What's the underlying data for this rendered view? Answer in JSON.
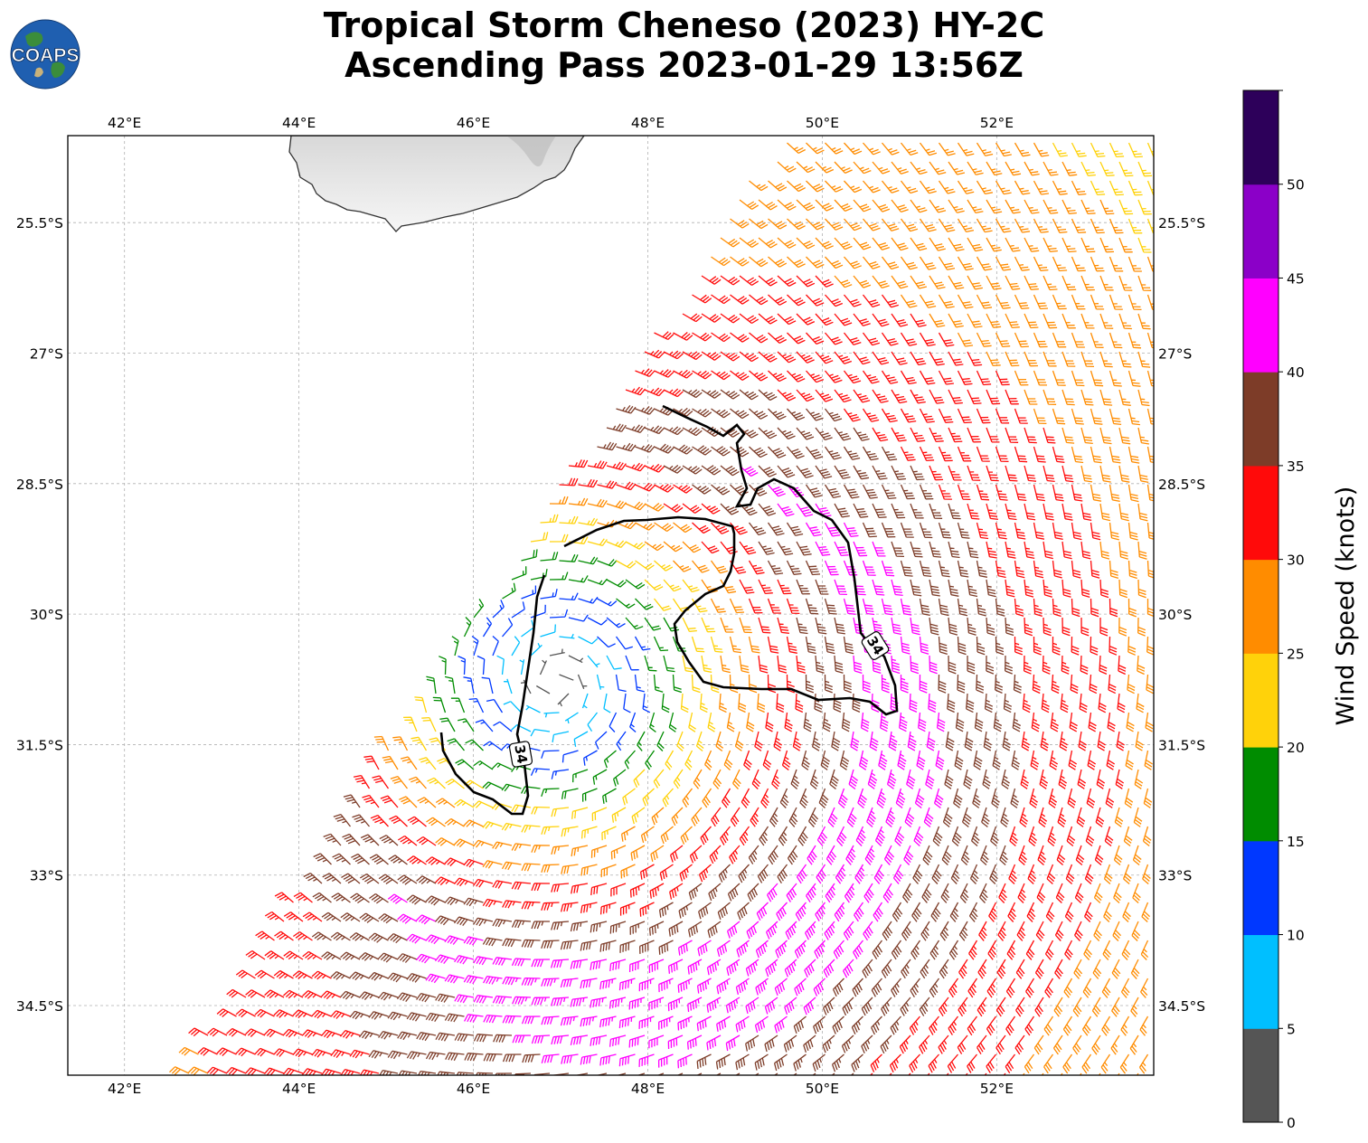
{
  "title": {
    "line1": "Tropical Storm Cheneso (2023) HY-2C",
    "line2": "Ascending Pass 2023-01-29 13:56Z"
  },
  "logo": {
    "text": "COAPS",
    "icon": "globe-logo-icon"
  },
  "map": {
    "lon_labels": [
      "42°E",
      "44°E",
      "46°E",
      "48°E",
      "50°E",
      "52°E"
    ],
    "lon_values": [
      42,
      44,
      46,
      48,
      50,
      52
    ],
    "lat_labels": [
      "25.5°S",
      "27°S",
      "28.5°S",
      "30°S",
      "31.5°S",
      "33°S",
      "34.5°S"
    ],
    "lat_values": [
      -25.5,
      -27,
      -28.5,
      -30,
      -31.5,
      -33,
      -34.5
    ],
    "extent": {
      "lon_min": 41.35,
      "lon_max": 53.8,
      "lat_min": -35.3,
      "lat_max": -24.5
    },
    "storm_center": {
      "lon": 47.65,
      "lat": -31.2
    },
    "contour_label": "34",
    "land": "Madagascar (southern tip)"
  },
  "colorbar": {
    "label": "Wind Speed (knots)",
    "ticks": [
      "0",
      "5",
      "10",
      "15",
      "20",
      "25",
      "30",
      "35",
      "40",
      "45",
      "50"
    ],
    "bins": [
      {
        "min": 0,
        "max": 5,
        "color": "#555555"
      },
      {
        "min": 5,
        "max": 10,
        "color": "#00bfff"
      },
      {
        "min": 10,
        "max": 15,
        "color": "#0038ff"
      },
      {
        "min": 15,
        "max": 20,
        "color": "#008c00"
      },
      {
        "min": 20,
        "max": 25,
        "color": "#ffd20a"
      },
      {
        "min": 25,
        "max": 30,
        "color": "#ff8c00"
      },
      {
        "min": 30,
        "max": 35,
        "color": "#ff0a0a"
      },
      {
        "min": 35,
        "max": 40,
        "color": "#7d3c28"
      },
      {
        "min": 40,
        "max": 45,
        "color": "#ff00ff"
      },
      {
        "min": 45,
        "max": 50,
        "color": "#8b00c8"
      },
      {
        "min": 50,
        "max": 55,
        "color": "#2d005a"
      }
    ]
  }
}
